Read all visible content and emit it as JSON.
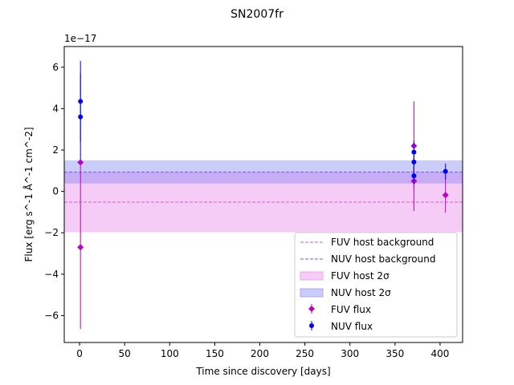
{
  "chart_data": {
    "type": "scatter",
    "title": "SN2007fr",
    "xlabel": "Time since discovery [days]",
    "ylabel": "Flux [erg s^-1 Å^-1 cm^-2]",
    "offset_text": "1e−17",
    "xlim": [
      -17,
      425
    ],
    "ylim": [
      -7.3,
      7.0
    ],
    "xticks": [
      0,
      50,
      100,
      150,
      200,
      250,
      300,
      350,
      400
    ],
    "xtick_labels": [
      "0",
      "50",
      "100",
      "150",
      "200",
      "250",
      "300",
      "350",
      "400"
    ],
    "yticks": [
      -6,
      -4,
      -2,
      0,
      2,
      4,
      6
    ],
    "ytick_labels": [
      "−6",
      "−4",
      "−2",
      "0",
      "2",
      "4",
      "6"
    ],
    "grid": false,
    "legend_position": "lower-right",
    "bands": [
      {
        "name": "FUV host 2σ",
        "y0": -1.97,
        "y1": 0.93,
        "color": "#e77fe7",
        "alpha": 0.4
      },
      {
        "name": "NUV host 2σ",
        "y0": 0.38,
        "y1": 1.5,
        "color": "#7f7ff5",
        "alpha": 0.4
      }
    ],
    "hlines": [
      {
        "name": "FUV host background",
        "y": -0.52,
        "color": "#dd55dd"
      },
      {
        "name": "NUV host background",
        "y": 0.93,
        "color": "#7755dd"
      }
    ],
    "series": [
      {
        "name": "FUV flux",
        "marker": "diamond",
        "color": "#bf00bf",
        "points": [
          {
            "x": 1,
            "y": 1.4,
            "err": 0.0
          },
          {
            "x": 1,
            "y": -2.7,
            "err": 3.95
          },
          {
            "x": 371,
            "y": 2.2,
            "err": 2.15
          },
          {
            "x": 371,
            "y": 0.5,
            "err": 1.45
          },
          {
            "x": 406,
            "y": -0.18,
            "err": 0.85
          }
        ]
      },
      {
        "name": "NUV flux",
        "marker": "circle",
        "color": "#0000ff",
        "points": [
          {
            "x": 1,
            "y": 4.35,
            "err": 1.95
          },
          {
            "x": 1,
            "y": 3.6,
            "err": 2.1
          },
          {
            "x": 371,
            "y": 1.9,
            "err": 0.55
          },
          {
            "x": 371,
            "y": 1.42,
            "err": 0.45
          },
          {
            "x": 371,
            "y": 0.75,
            "err": 0.4
          },
          {
            "x": 406,
            "y": 0.97,
            "err": 0.38
          }
        ]
      }
    ]
  }
}
